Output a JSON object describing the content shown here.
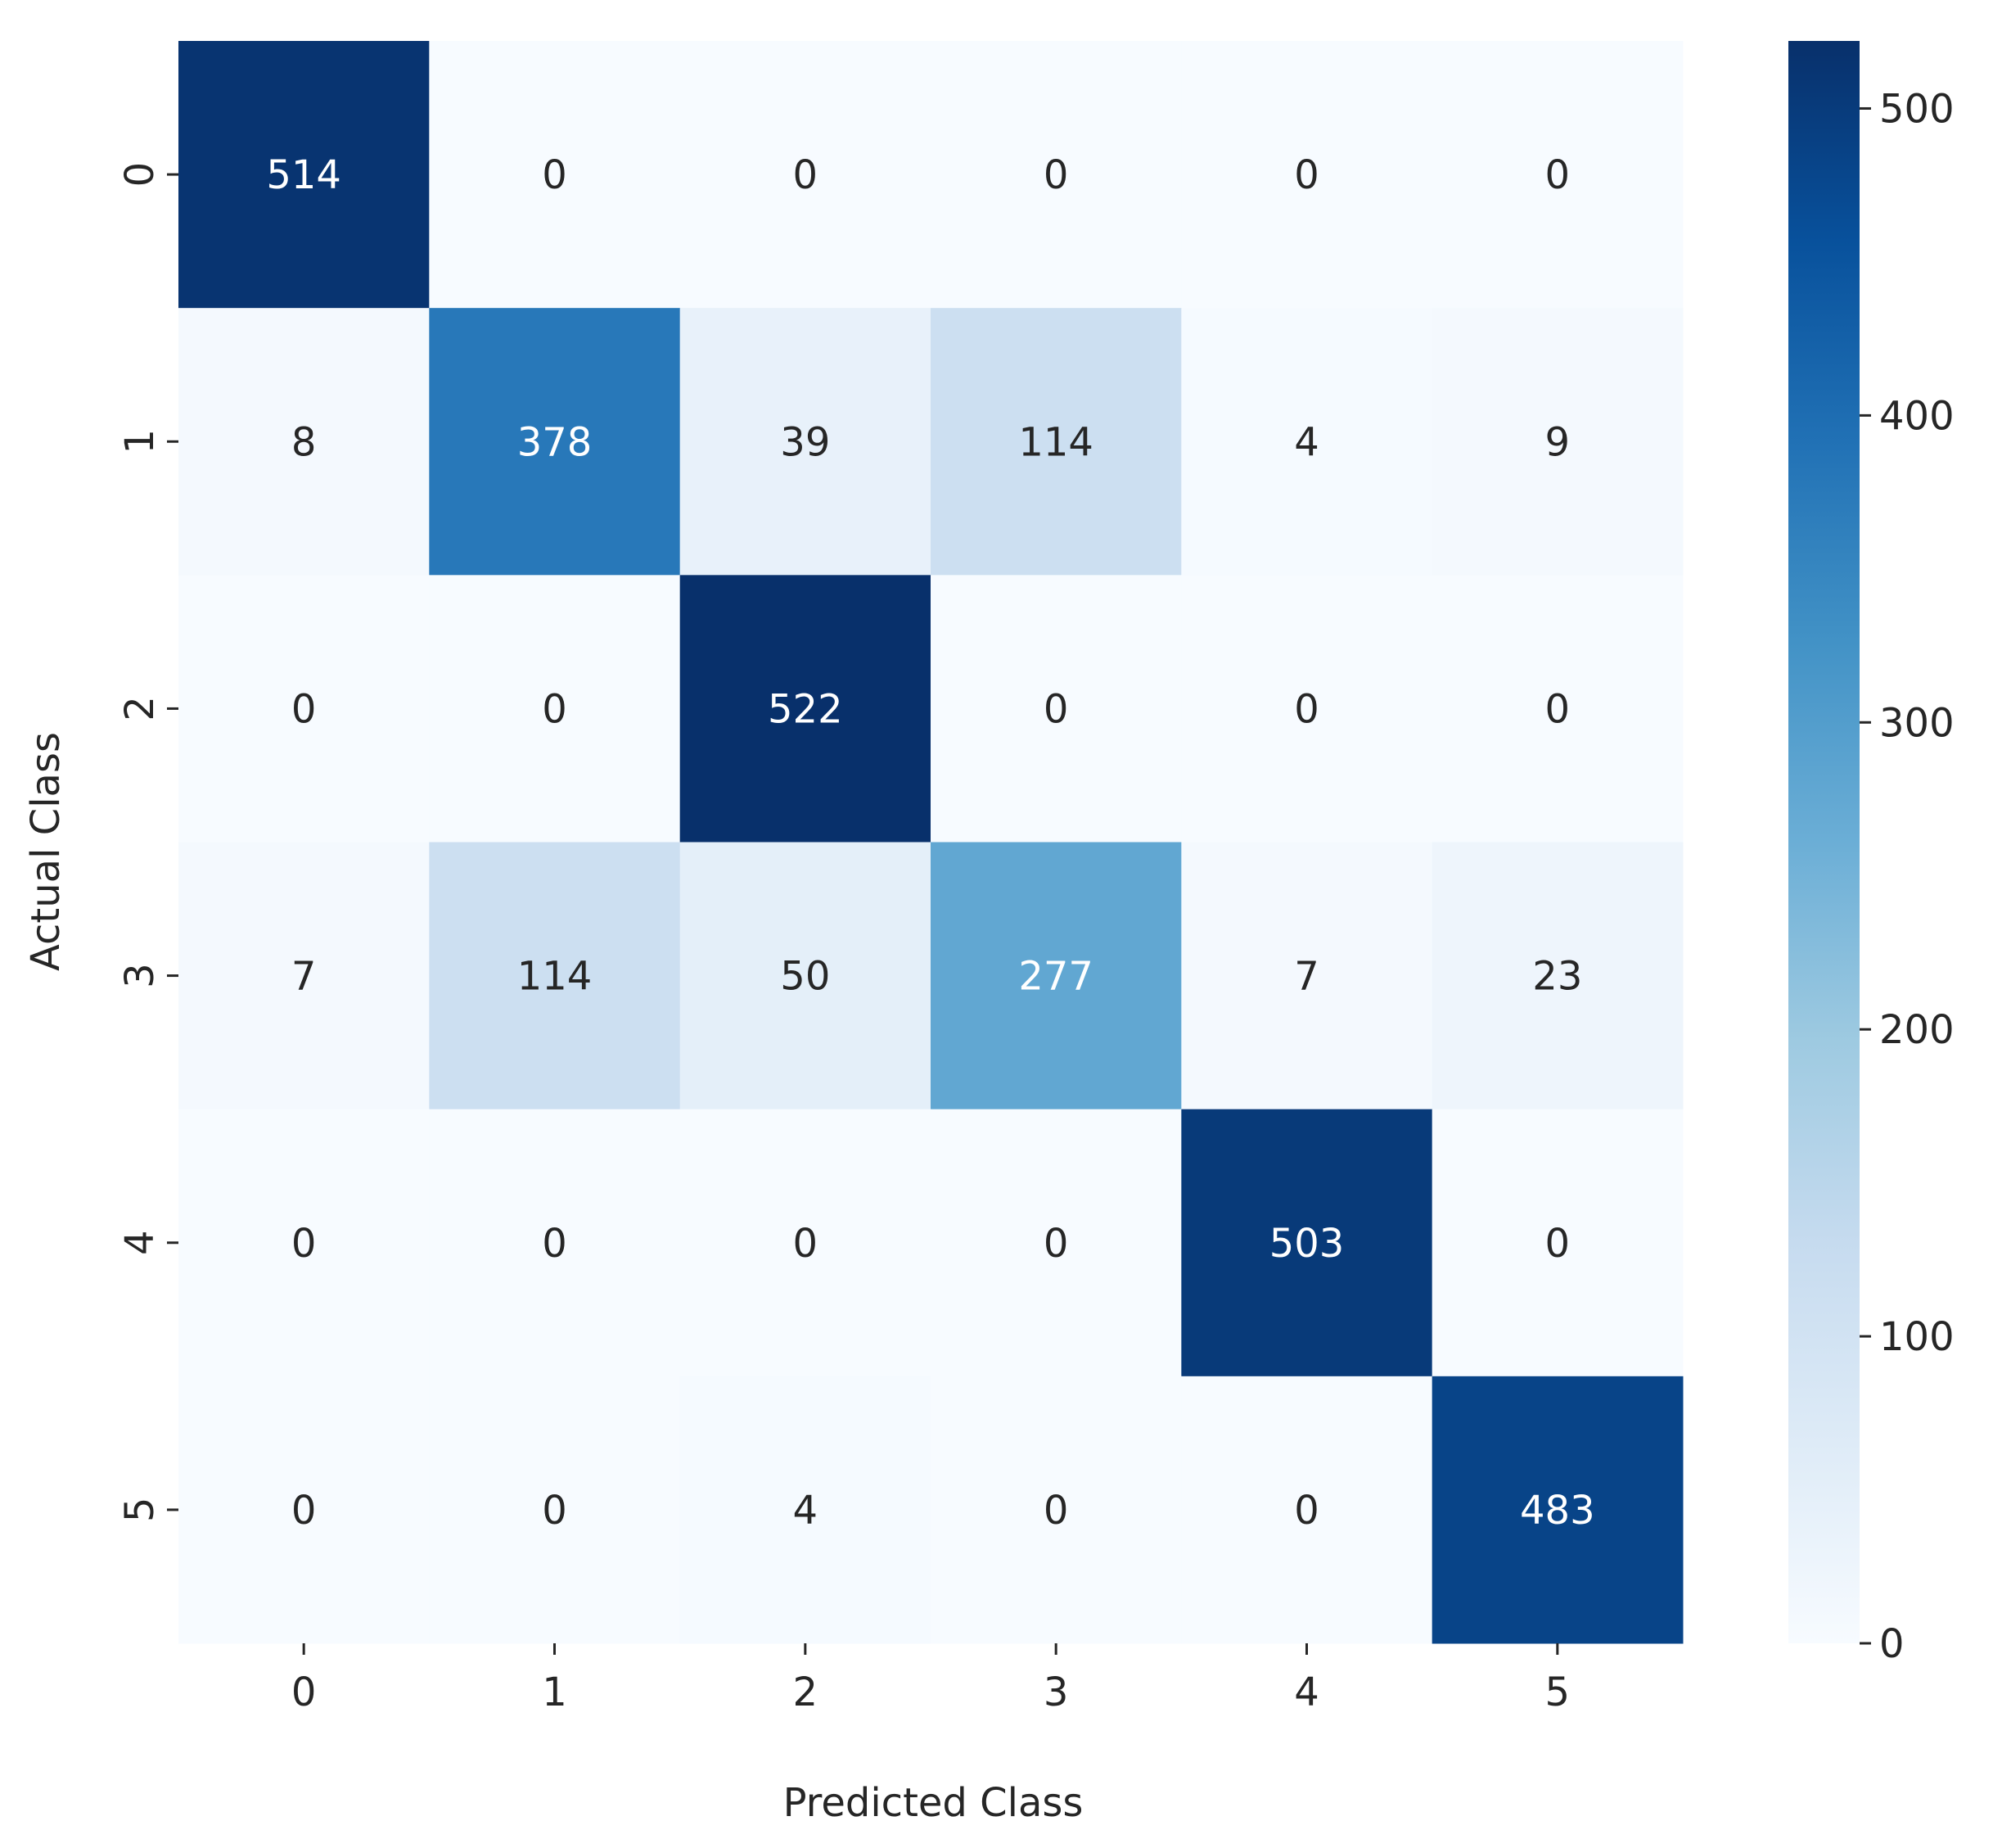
{
  "chart_data": {
    "type": "heatmap",
    "title": "",
    "xlabel": "Predicted Class",
    "ylabel": "Actual Class",
    "x_categories": [
      "0",
      "1",
      "2",
      "3",
      "4",
      "5"
    ],
    "y_categories": [
      "0",
      "1",
      "2",
      "3",
      "4",
      "5"
    ],
    "values": [
      [
        514,
        0,
        0,
        0,
        0,
        0
      ],
      [
        8,
        378,
        39,
        114,
        4,
        9
      ],
      [
        0,
        0,
        522,
        0,
        0,
        0
      ],
      [
        7,
        114,
        50,
        277,
        7,
        23
      ],
      [
        0,
        0,
        0,
        0,
        503,
        0
      ],
      [
        0,
        0,
        4,
        0,
        0,
        483
      ]
    ],
    "value_range": [
      0,
      522
    ],
    "colormap": "Blues",
    "colorbar": {
      "ticks": [
        0,
        100,
        200,
        300,
        400,
        500
      ],
      "tick_labels": [
        "0",
        "100",
        "200",
        "300",
        "400",
        "500"
      ]
    },
    "annotate": true,
    "grid": false
  }
}
